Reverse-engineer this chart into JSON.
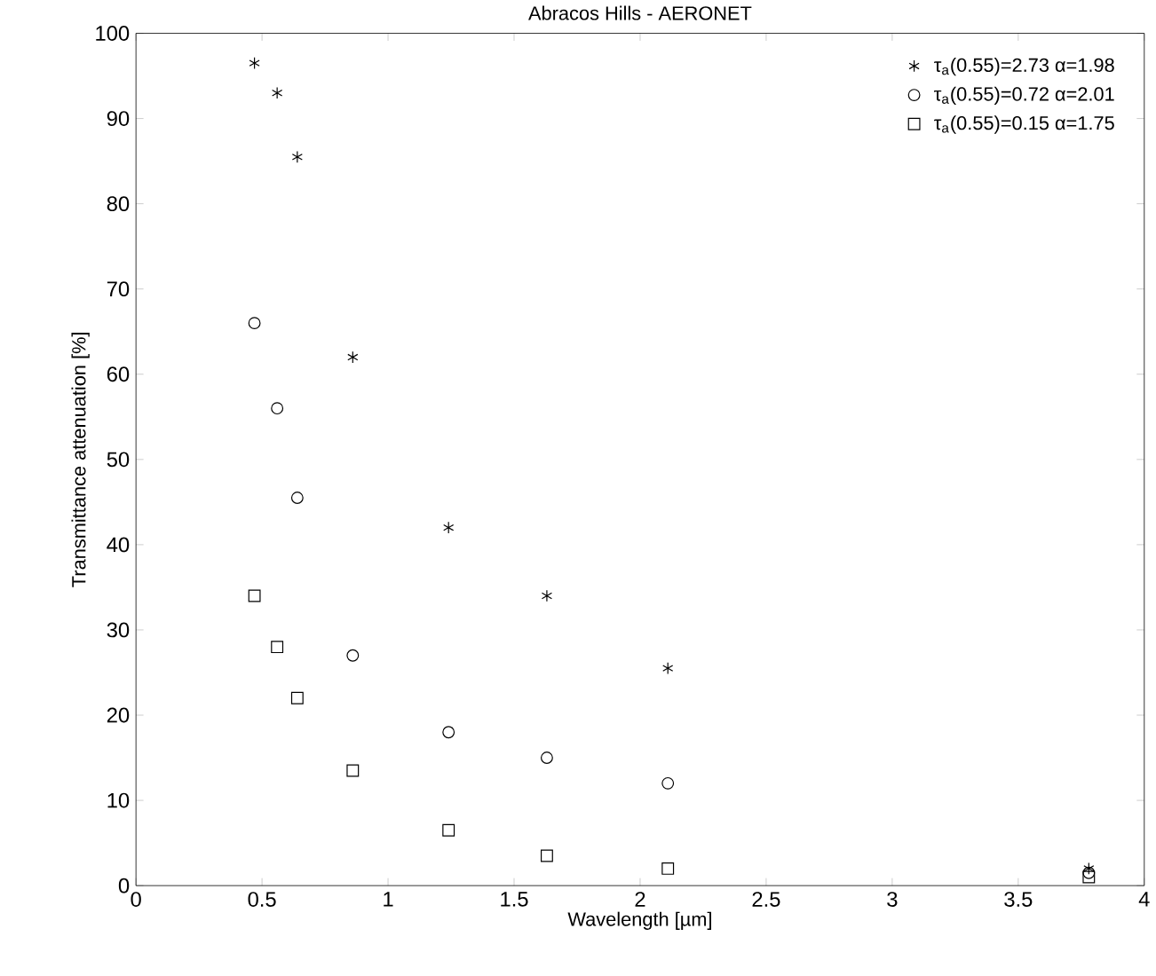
{
  "chart_data": {
    "type": "scatter",
    "title": "Abracos Hills - AERONET",
    "xlabel": "Wavelength [µm]",
    "ylabel": "Transmittance attenuation [%]",
    "x": [
      0.47,
      0.56,
      0.64,
      0.86,
      1.24,
      1.63,
      2.11,
      3.78
    ],
    "series": [
      {
        "name": "τ$_{a}$(0.55)=2.73  α=1.98",
        "color": "#000000",
        "marker": "cross",
        "values": [
          96.5,
          93,
          85.5,
          62,
          42,
          34,
          25.5,
          2
        ]
      },
      {
        "name": "τ$_{a}$(0.55)=0.72  α=2.01",
        "color": "#000000",
        "marker": "circle",
        "values": [
          66,
          56,
          45.5,
          27,
          18,
          15,
          12,
          1.5
        ]
      },
      {
        "name": "τ$_{a}$(0.55)=0.15  α=1.75",
        "color": "#000000",
        "marker": "square",
        "values": [
          34,
          28,
          22,
          13.5,
          6.5,
          3.5,
          2,
          1
        ]
      }
    ],
    "xlim": [
      0,
      4
    ],
    "ylim": [
      0,
      100
    ],
    "xticks": [
      0,
      0.5,
      1,
      1.5,
      2,
      2.5,
      3,
      3.5,
      4
    ],
    "yticks": [
      0,
      10,
      20,
      30,
      40,
      50,
      60,
      70,
      80,
      90,
      100
    ],
    "grid": false,
    "legend": "top right"
  }
}
